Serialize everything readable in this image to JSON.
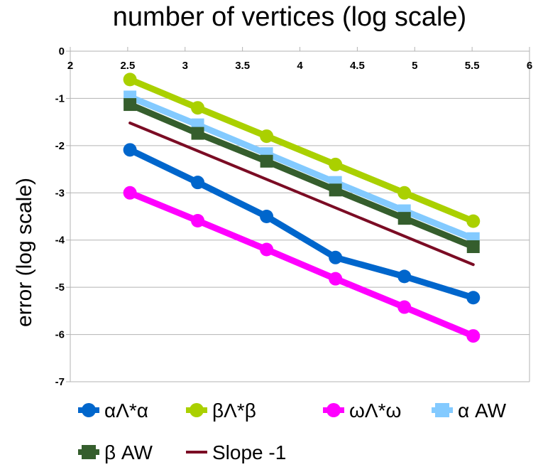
{
  "chart_data": {
    "type": "line",
    "title": "number of vertices (log scale)",
    "xlabel": "",
    "ylabel": "error (log scale)",
    "xlim": [
      2,
      6
    ],
    "ylim": [
      -7,
      0
    ],
    "x_ticks": [
      "2",
      "2.5",
      "3",
      "3.5",
      "4",
      "4.5",
      "5",
      "5.5",
      "6"
    ],
    "y_ticks": [
      "0",
      "-1",
      "-2",
      "-3",
      "-4",
      "-5",
      "-6",
      "-7"
    ],
    "x_axis_position": "top",
    "grid": true,
    "legend_position": "bottom",
    "series": [
      {
        "name": "αΛ*α",
        "color": "#0066cc",
        "marker": "circle",
        "x": [
          2.52,
          3.11,
          3.71,
          4.31,
          4.91,
          5.51
        ],
        "y": [
          -2.09,
          -2.78,
          -3.5,
          -4.37,
          -4.77,
          -5.22
        ]
      },
      {
        "name": "βΛ*β",
        "color": "#aad000",
        "marker": "circle",
        "x": [
          2.52,
          3.11,
          3.71,
          4.31,
          4.91,
          5.51
        ],
        "y": [
          -0.6,
          -1.2,
          -1.8,
          -2.4,
          -3.0,
          -3.6
        ]
      },
      {
        "name": "ωΛ*ω",
        "color": "#ff00ff",
        "marker": "circle",
        "x": [
          2.52,
          3.11,
          3.71,
          4.31,
          4.91,
          5.51
        ],
        "y": [
          -3.0,
          -3.59,
          -4.2,
          -4.82,
          -5.42,
          -6.03
        ]
      },
      {
        "name": "α AW",
        "color": "#83caff",
        "marker": "square",
        "x": [
          2.52,
          3.11,
          3.71,
          4.31,
          4.91,
          5.51
        ],
        "y": [
          -0.97,
          -1.56,
          -2.17,
          -2.78,
          -3.38,
          -3.97
        ]
      },
      {
        "name": "β AW",
        "color": "#355e2d",
        "marker": "square",
        "x": [
          2.52,
          3.11,
          3.71,
          4.31,
          4.91,
          5.51
        ],
        "y": [
          -1.13,
          -1.74,
          -2.33,
          -2.94,
          -3.54,
          -4.14
        ]
      },
      {
        "name": "Slope -1",
        "color": "#7b0c24",
        "marker": "none",
        "x": [
          2.52,
          5.51
        ],
        "y": [
          -1.52,
          -4.52
        ]
      }
    ]
  }
}
